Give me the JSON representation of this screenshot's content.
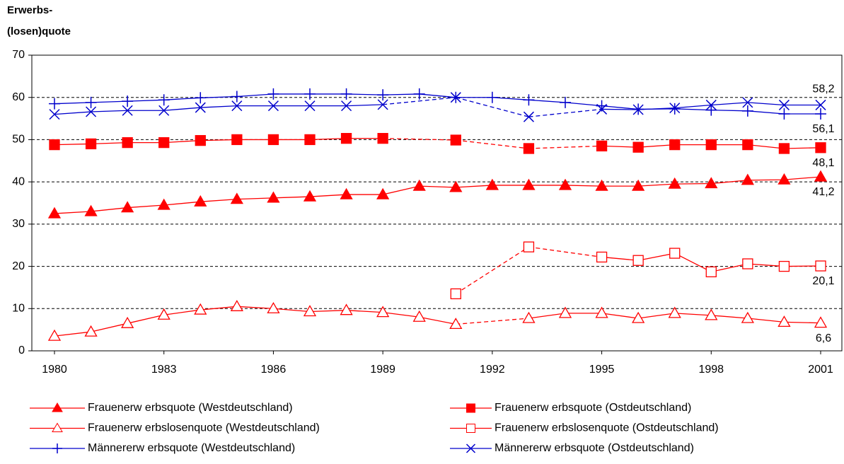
{
  "chart_data": {
    "type": "line",
    "title": [
      "Erwerbs-",
      "(losen)quote"
    ],
    "x": [
      1980,
      1981,
      1982,
      1983,
      1984,
      1985,
      1986,
      1987,
      1988,
      1989,
      1990,
      1991,
      1992,
      1993,
      1994,
      1995,
      1996,
      1997,
      1998,
      1999,
      2000,
      2001
    ],
    "xlim": [
      1980,
      2001
    ],
    "xticks": [
      1980,
      1983,
      1986,
      1989,
      1992,
      1995,
      1998,
      2001
    ],
    "ylim": [
      0,
      70
    ],
    "yticks": [
      0,
      10,
      20,
      30,
      40,
      50,
      60,
      70
    ],
    "grid": true,
    "gap_style": "dashed",
    "legend": "bottom",
    "series": [
      {
        "name": "Frauenerw erbsquote (Westdeutschland)",
        "color": "#ff0000",
        "marker": "triangle",
        "values": [
          32.5,
          33.0,
          33.9,
          34.5,
          35.3,
          35.9,
          36.2,
          36.5,
          37.0,
          37.0,
          39.0,
          38.7,
          39.2,
          39.2,
          39.2,
          39.0,
          39.0,
          39.5,
          39.6,
          40.4,
          40.5,
          41.2
        ],
        "value_labels": [
          null,
          null,
          null,
          null,
          null,
          null,
          null,
          null,
          null,
          null,
          null,
          null,
          null,
          null,
          null,
          null,
          null,
          null,
          null,
          null,
          null,
          "41,2"
        ]
      },
      {
        "name": "Frauenerw erbsquote (Ostdeutschland)",
        "color": "#ff0000",
        "marker": "square",
        "values": [
          48.8,
          49.0,
          49.3,
          49.3,
          49.8,
          50.0,
          50.0,
          50.0,
          50.3,
          50.3,
          null,
          49.9,
          null,
          47.9,
          null,
          48.5,
          48.2,
          48.8,
          48.8,
          48.8,
          47.9,
          48.1
        ],
        "value_labels": [
          null,
          null,
          null,
          null,
          null,
          null,
          null,
          null,
          null,
          null,
          null,
          null,
          null,
          null,
          null,
          null,
          null,
          null,
          null,
          null,
          null,
          "48,1"
        ]
      },
      {
        "name": "Frauenerw erbslosenquote (Westdeutschland)",
        "color": "#ff0000",
        "marker": "triangle-open",
        "values": [
          3.5,
          4.5,
          6.5,
          8.5,
          9.7,
          10.5,
          10.0,
          9.3,
          9.6,
          9.1,
          8.0,
          6.3,
          null,
          7.7,
          8.9,
          8.9,
          7.7,
          8.9,
          8.4,
          7.7,
          6.8,
          6.6
        ],
        "value_labels": [
          null,
          null,
          null,
          null,
          null,
          null,
          null,
          null,
          null,
          null,
          null,
          null,
          null,
          null,
          null,
          null,
          null,
          null,
          null,
          null,
          null,
          "6,6"
        ]
      },
      {
        "name": "Frauenerw erbslosenquote (Ostdeutschland)",
        "color": "#ff0000",
        "marker": "square-open",
        "values": [
          null,
          null,
          null,
          null,
          null,
          null,
          null,
          null,
          null,
          null,
          null,
          13.5,
          null,
          24.6,
          null,
          22.2,
          21.4,
          23.1,
          18.7,
          20.6,
          20.0,
          20.1
        ],
        "value_labels": [
          null,
          null,
          null,
          null,
          null,
          null,
          null,
          null,
          null,
          null,
          null,
          null,
          null,
          null,
          null,
          null,
          null,
          null,
          null,
          null,
          null,
          "20,1"
        ]
      },
      {
        "name": "Männererw erbsquote (Westdeutschland)",
        "color": "#0000cc",
        "marker": "plus",
        "values": [
          58.5,
          58.8,
          59.1,
          59.4,
          59.9,
          60.2,
          60.8,
          60.8,
          60.8,
          60.6,
          60.8,
          60.0,
          60.0,
          59.4,
          58.8,
          58.0,
          57.2,
          57.3,
          57.0,
          56.8,
          56.1,
          56.1
        ],
        "value_labels": [
          null,
          null,
          null,
          null,
          null,
          null,
          null,
          null,
          null,
          null,
          null,
          null,
          null,
          null,
          null,
          null,
          null,
          null,
          null,
          null,
          null,
          "56,1"
        ]
      },
      {
        "name": "Männererw erbsquote (Ostdeutschland)",
        "color": "#0000cc",
        "marker": "x",
        "values": [
          56.0,
          56.6,
          56.9,
          56.9,
          57.6,
          58.0,
          58.0,
          58.0,
          58.0,
          58.3,
          null,
          60.0,
          null,
          55.4,
          null,
          57.2,
          57.1,
          57.5,
          58.2,
          58.8,
          58.2,
          58.2
        ],
        "value_labels": [
          null,
          null,
          null,
          null,
          null,
          null,
          null,
          null,
          null,
          null,
          null,
          null,
          null,
          null,
          null,
          null,
          null,
          null,
          null,
          null,
          null,
          "58,2"
        ]
      }
    ]
  }
}
